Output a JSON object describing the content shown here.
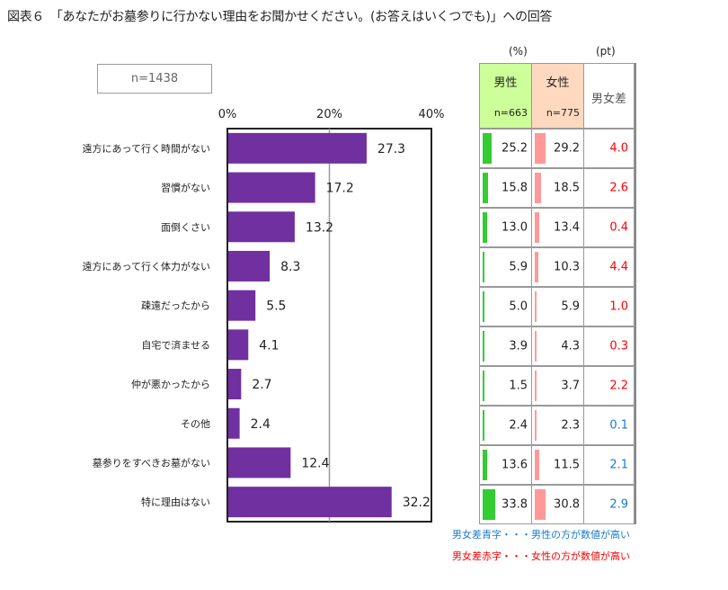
{
  "title": "図表６　「あなたがお墓参りに行かない理由をお聞かせください。(お答えはいくつでも)」への回答",
  "sample_label": "n=1438",
  "colors": {
    "bar": "#7030a0",
    "male_bar": "#33cc33",
    "female_bar": "#ff9999",
    "male_header_bg": "#ccff99",
    "female_header_bg": "#ffd9bf",
    "diff_red": "#ff0000",
    "diff_blue": "#1a7ac9"
  },
  "chart_data": {
    "type": "bar",
    "orientation": "horizontal",
    "title": "",
    "xlabel": "",
    "ylabel": "",
    "xlim": [
      0,
      40
    ],
    "xticks": [
      0,
      20,
      40
    ],
    "xtick_labels": [
      "0%",
      "20%",
      "40%"
    ],
    "grid": true,
    "categories": [
      "遠方にあって行く時間がない",
      "習慣がない",
      "面倒くさい",
      "遠方にあって行く体力がない",
      "疎遠だったから",
      "自宅で済ませる",
      "仲が悪かったから",
      "その他",
      "墓参りをすべきお墓がない",
      "特に理由はない"
    ],
    "values": [
      27.3,
      17.2,
      13.2,
      8.3,
      5.5,
      4.1,
      2.7,
      2.4,
      12.4,
      32.2
    ],
    "value_labels": [
      "27.3",
      "17.2",
      "13.2",
      "8.3",
      "5.5",
      "4.1",
      "2.7",
      "2.4",
      "12.4",
      "32.2"
    ]
  },
  "table": {
    "unit_pct": "(%)",
    "unit_pt": "(pt)",
    "male_header": "男性",
    "male_n": "n=663",
    "female_header": "女性",
    "female_n": "n=775",
    "diff_header": "男女差",
    "rows": [
      {
        "male": 25.2,
        "male_label": "25.2",
        "female": 29.2,
        "female_label": "29.2",
        "diff": "4.0",
        "higher": "female"
      },
      {
        "male": 15.8,
        "male_label": "15.8",
        "female": 18.5,
        "female_label": "18.5",
        "diff": "2.6",
        "higher": "female"
      },
      {
        "male": 13.0,
        "male_label": "13.0",
        "female": 13.4,
        "female_label": "13.4",
        "diff": "0.4",
        "higher": "female"
      },
      {
        "male": 5.9,
        "male_label": "5.9",
        "female": 10.3,
        "female_label": "10.3",
        "diff": "4.4",
        "higher": "female"
      },
      {
        "male": 5.0,
        "male_label": "5.0",
        "female": 5.9,
        "female_label": "5.9",
        "diff": "1.0",
        "higher": "female"
      },
      {
        "male": 3.9,
        "male_label": "3.9",
        "female": 4.3,
        "female_label": "4.3",
        "diff": "0.3",
        "higher": "female"
      },
      {
        "male": 1.5,
        "male_label": "1.5",
        "female": 3.7,
        "female_label": "3.7",
        "diff": "2.2",
        "higher": "female"
      },
      {
        "male": 2.4,
        "male_label": "2.4",
        "female": 2.3,
        "female_label": "2.3",
        "diff": "0.1",
        "higher": "male"
      },
      {
        "male": 13.6,
        "male_label": "13.6",
        "female": 11.5,
        "female_label": "11.5",
        "diff": "2.1",
        "higher": "male"
      },
      {
        "male": 33.8,
        "male_label": "33.8",
        "female": 30.8,
        "female_label": "30.8",
        "diff": "2.9",
        "higher": "male"
      }
    ]
  },
  "notes": {
    "blue": "男女差青字・・・男性の方が数値が高い",
    "red": "男女差赤字・・・女性の方が数値が高い"
  }
}
